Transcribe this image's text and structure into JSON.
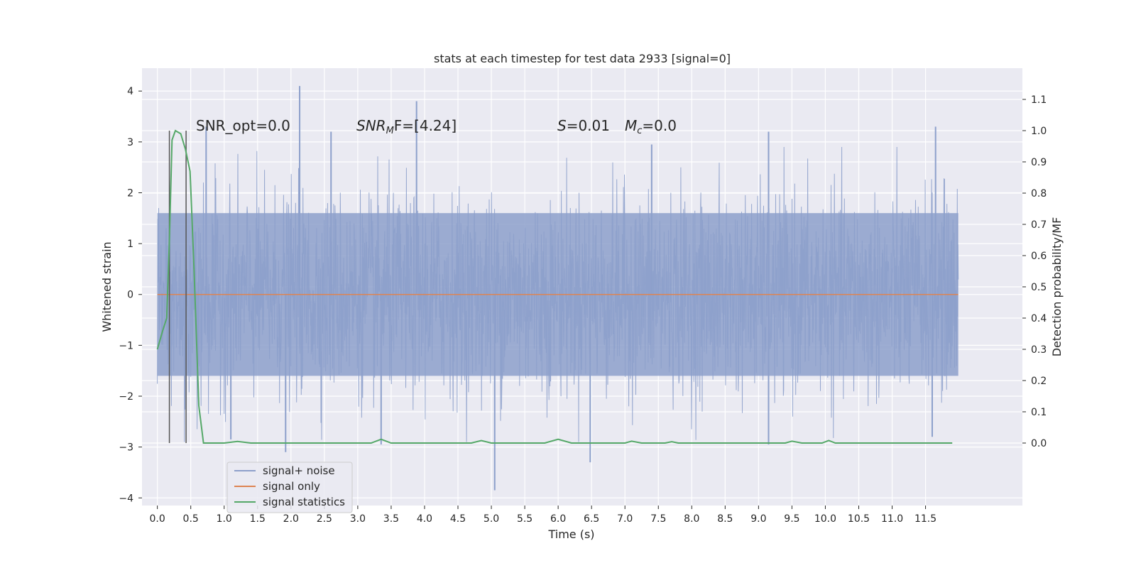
{
  "chart_data": {
    "type": "line",
    "title": "stats at each timestep for test data 2933 [signal=0]",
    "xlabel": "Time (s)",
    "ylabel_left": "Whitened strain",
    "ylabel_right": "Detection probability/MF",
    "xlim": [
      -0.23,
      12.95
    ],
    "ylim_left": [
      -4.15,
      4.45
    ],
    "ylim_right": [
      -0.2,
      1.2
    ],
    "x_ticks": [
      0.0,
      0.5,
      1.0,
      1.5,
      2.0,
      2.5,
      3.0,
      3.5,
      4.0,
      4.5,
      5.0,
      5.5,
      6.0,
      6.5,
      7.0,
      7.5,
      8.0,
      8.5,
      9.0,
      9.5,
      10.0,
      10.5,
      11.0,
      11.5
    ],
    "x_tick_labels": [
      "0.0",
      "0.5",
      "1.0",
      "1.5",
      "2.0",
      "2.5",
      "3.0",
      "3.5",
      "4.0",
      "4.5",
      "5.0",
      "5.5",
      "6.0",
      "6.5",
      "7.0",
      "7.5",
      "8.0",
      "8.5",
      "9.0",
      "9.5",
      "10.0",
      "10.5",
      "11.0",
      "11.5"
    ],
    "y_left_ticks": [
      -4,
      -3,
      -2,
      -1,
      0,
      1,
      2,
      3,
      4
    ],
    "y_left_tick_labels": [
      "−4",
      "−3",
      "−2",
      "−1",
      "0",
      "1",
      "2",
      "3",
      "4"
    ],
    "y_right_ticks": [
      0.0,
      0.1,
      0.2,
      0.3,
      0.4,
      0.5,
      0.6,
      0.7,
      0.8,
      0.9,
      1.0,
      1.1
    ],
    "y_right_tick_labels": [
      "0.0",
      "0.1",
      "0.2",
      "0.3",
      "0.4",
      "0.5",
      "0.6",
      "0.7",
      "0.8",
      "0.9",
      "1.0",
      "1.1"
    ],
    "grid": true,
    "legend_position": "lower-left",
    "annotations": {
      "snr_opt": "SNR_opt=0.0",
      "snr_mf_main": "SNR",
      "snr_mf_sub": "M",
      "snr_mf_rest": "F=[4.24]",
      "s_sym": "S",
      "s_val": "=0.01",
      "mc_sym": "M",
      "mc_sub": "c",
      "mc_val": "=0.0"
    },
    "vertical_markers_x": [
      0.18,
      0.43
    ],
    "series": [
      {
        "name": "signal+ noise",
        "axis": "left",
        "color": "#8da0cb",
        "x_range": [
          0.0,
          11.99
        ],
        "band_typical": [
          -1.6,
          1.6
        ],
        "spikes": [
          {
            "x": 2.13,
            "y": 4.1
          },
          {
            "x": 3.88,
            "y": 3.8
          },
          {
            "x": 0.73,
            "y": 3.3
          },
          {
            "x": 2.6,
            "y": 3.2
          },
          {
            "x": 9.15,
            "y": 3.2
          },
          {
            "x": 11.65,
            "y": 3.3
          },
          {
            "x": 7.4,
            "y": 2.95
          },
          {
            "x": 5.05,
            "y": -3.85
          },
          {
            "x": 6.48,
            "y": -3.3
          },
          {
            "x": 1.92,
            "y": -3.1
          },
          {
            "x": 9.15,
            "y": -2.95
          },
          {
            "x": 3.35,
            "y": -2.95
          },
          {
            "x": 11.6,
            "y": -2.8
          },
          {
            "x": 1.1,
            "y": -2.85
          }
        ]
      },
      {
        "name": "signal only",
        "axis": "left",
        "color": "#dd8452",
        "x": [
          0.0,
          11.99
        ],
        "y": [
          0.0,
          0.0
        ]
      },
      {
        "name": "signal statistics",
        "axis": "right",
        "color": "#55a868",
        "x": [
          0.0,
          0.08,
          0.14,
          0.18,
          0.22,
          0.27,
          0.35,
          0.42,
          0.49,
          0.55,
          0.62,
          0.69,
          0.73,
          1.0,
          1.2,
          1.4,
          3.2,
          3.35,
          3.5,
          4.7,
          4.85,
          5.0,
          5.8,
          6.0,
          6.2,
          7.0,
          7.1,
          7.25,
          7.6,
          7.7,
          7.8,
          9.4,
          9.5,
          9.65,
          9.95,
          10.05,
          10.15,
          11.9
        ],
        "y": [
          0.3,
          0.36,
          0.4,
          0.65,
          0.97,
          1.0,
          0.99,
          0.94,
          0.87,
          0.55,
          0.12,
          0.0,
          0.0,
          0.0,
          0.005,
          0.0,
          0.0,
          0.012,
          0.0,
          0.0,
          0.008,
          0.0,
          0.0,
          0.012,
          0.0,
          0.0,
          0.006,
          0.0,
          0.0,
          0.004,
          0.0,
          0.0,
          0.006,
          0.0,
          0.0,
          0.008,
          0.0,
          0.0
        ]
      }
    ]
  },
  "legend": {
    "items": [
      {
        "label": "signal+ noise",
        "color": "#8da0cb"
      },
      {
        "label": "signal only",
        "color": "#dd8452"
      },
      {
        "label": "signal statistics",
        "color": "#55a868"
      }
    ]
  }
}
